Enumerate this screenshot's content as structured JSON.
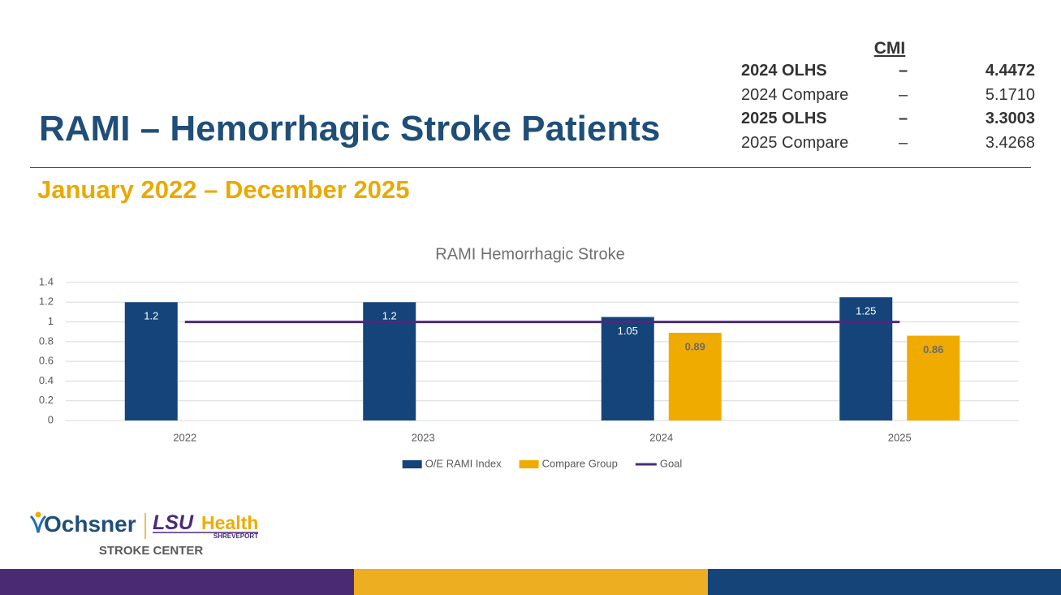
{
  "slide": {
    "title": "RAMI – Hemorrhagic Stroke Patients",
    "subtitle": "January 2022 – December 2025",
    "cmi": {
      "heading": "CMI",
      "rows": [
        [
          "2024 OLHS",
          "–",
          "4.4472"
        ],
        [
          "2024 Compare",
          "–",
          "5.1710"
        ],
        [
          "2025 OLHS",
          "–",
          "3.3003"
        ],
        [
          "2025 Compare",
          "–",
          "3.4268"
        ]
      ]
    },
    "logo": {
      "ochsner": "Ochsner",
      "lsu": "LSU",
      "health": "Health",
      "shreveport": "SHREVEPORT",
      "center": "STROKE CENTER"
    }
  },
  "chart_data": {
    "type": "bar",
    "title": "RAMI Hemorrhagic Stroke",
    "categories": [
      "2022",
      "2023",
      "2024",
      "2025"
    ],
    "series": [
      {
        "name": "O/E RAMI Index",
        "color": "#144479",
        "label_color": "#ffffff",
        "values": [
          1.2,
          1.2,
          1.05,
          1.25
        ]
      },
      {
        "name": "Compare Group",
        "color": "#f0ab00",
        "label_color": "#6b6b6b",
        "values": [
          null,
          null,
          0.89,
          0.86
        ]
      },
      {
        "name": "Goal",
        "type": "line",
        "color": "#4b2a7b",
        "values": [
          1,
          1,
          1,
          1
        ]
      }
    ],
    "ylim": [
      0,
      1.4
    ],
    "yticks": [
      0,
      0.2,
      0.4,
      0.6,
      0.8,
      1,
      1.2,
      1.4
    ],
    "grid": true,
    "legend": "bottom"
  }
}
